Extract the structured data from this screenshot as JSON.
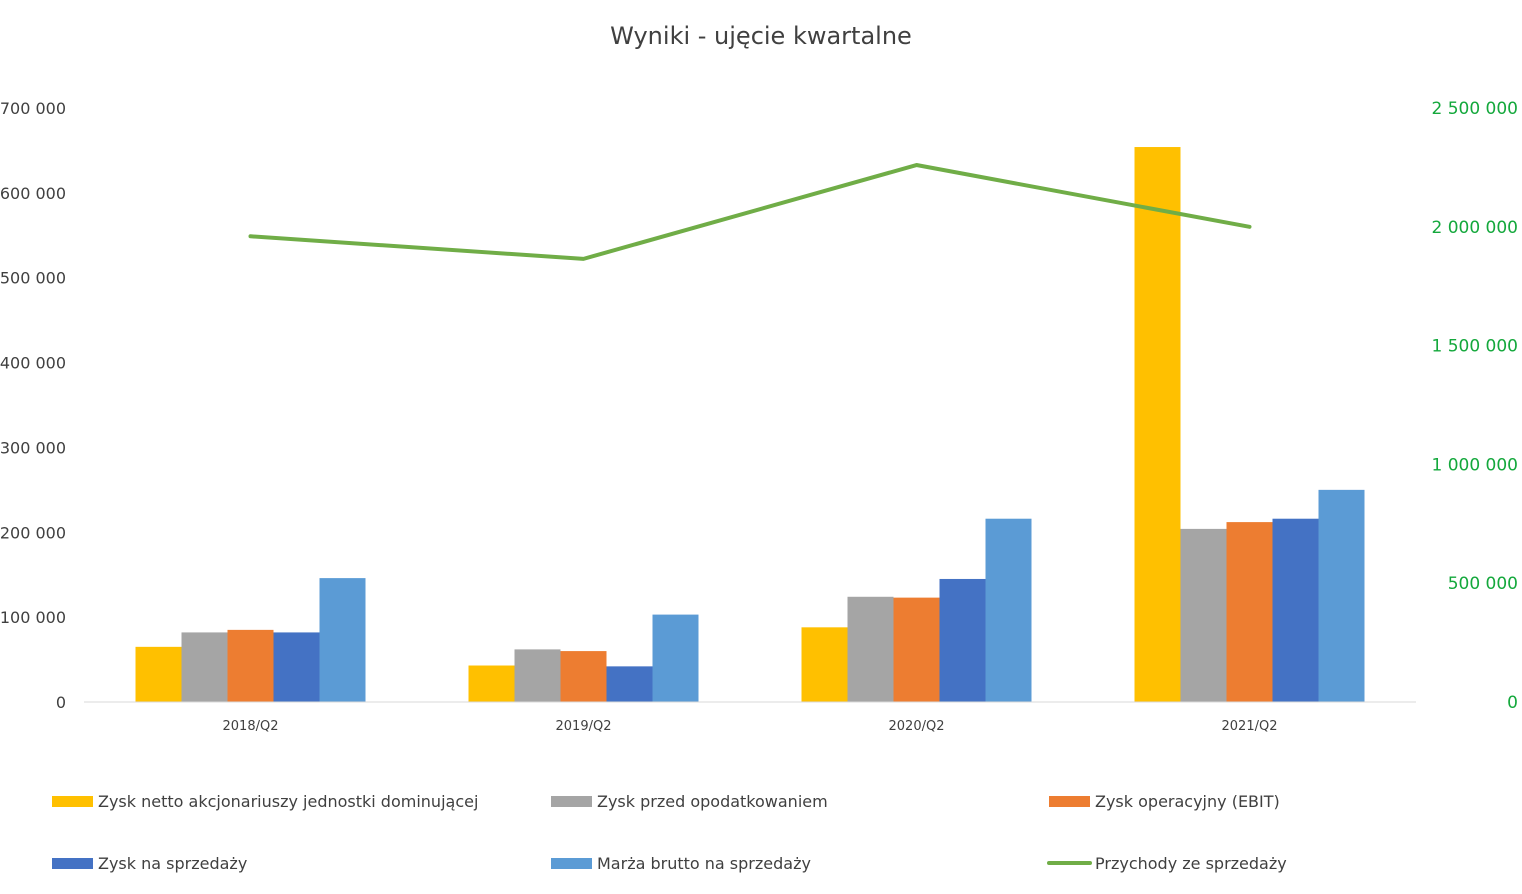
{
  "chart_data": {
    "type": "bar",
    "title": "Wyniki - ujęcie kwartalne",
    "categories": [
      "2018/Q2",
      "2019/Q2",
      "2020/Q2",
      "2021/Q2"
    ],
    "y_left": {
      "min": 0,
      "max": 700000,
      "ticks": [
        0,
        100000,
        200000,
        300000,
        400000,
        500000,
        600000,
        700000
      ],
      "tick_labels": [
        "0",
        "100 000",
        "200 000",
        "300 000",
        "400 000",
        "500 000",
        "600 000",
        "700 000"
      ]
    },
    "y_right": {
      "min": 0,
      "max": 2500000,
      "ticks": [
        0,
        500000,
        1000000,
        1500000,
        2000000,
        2500000
      ],
      "tick_labels": [
        "0",
        "500 000",
        "1 000 000",
        "1 500 000",
        "2 000 000",
        "2 500 000"
      ],
      "color": "#14a83c"
    },
    "series": [
      {
        "name": "Zysk netto akcjonariuszy jednostki dominującej",
        "type": "bar",
        "axis": "left",
        "color": "#ffc000",
        "values": [
          65000,
          43000,
          88000,
          654000
        ]
      },
      {
        "name": "Zysk przed opodatkowaniem",
        "type": "bar",
        "axis": "left",
        "color": "#a5a5a5",
        "values": [
          82000,
          62000,
          124000,
          204000
        ]
      },
      {
        "name": "Zysk operacyjny (EBIT)",
        "type": "bar",
        "axis": "left",
        "color": "#ed7d31",
        "values": [
          85000,
          60000,
          123000,
          212000
        ]
      },
      {
        "name": "Zysk na sprzedaży",
        "type": "bar",
        "axis": "left",
        "color": "#4472c4",
        "values": [
          82000,
          42000,
          145000,
          216000
        ]
      },
      {
        "name": "Marża brutto na sprzedaży",
        "type": "bar",
        "axis": "left",
        "color": "#5b9bd5",
        "values": [
          146000,
          103000,
          216000,
          250000
        ]
      },
      {
        "name": "Przychody ze sprzedaży",
        "type": "line",
        "axis": "right",
        "color": "#70ad47",
        "values": [
          1960000,
          1865000,
          2260000,
          2000000
        ]
      }
    ],
    "legend_position": "bottom",
    "grid": false
  }
}
